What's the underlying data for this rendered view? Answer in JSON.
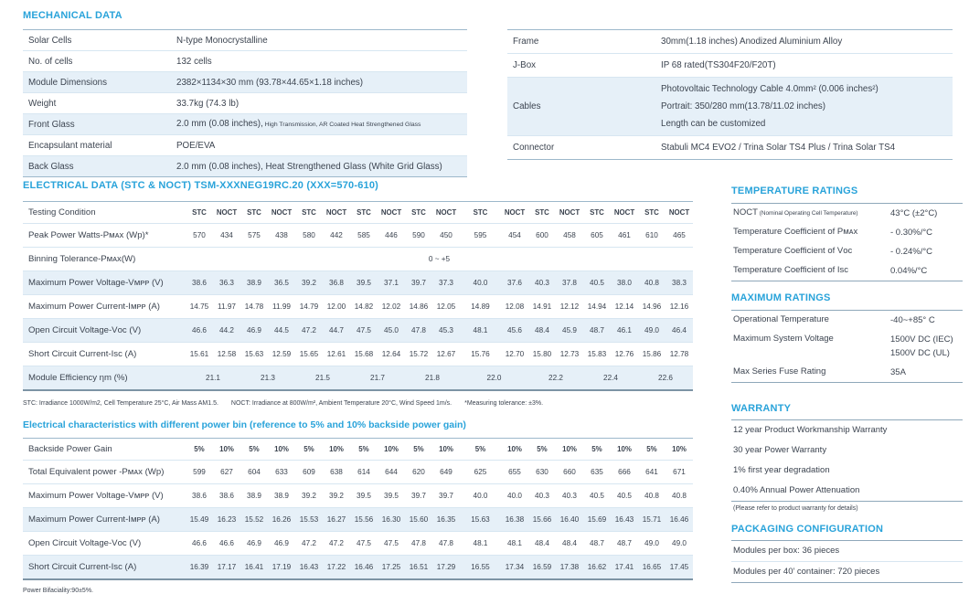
{
  "accent_color": "#29a3da",
  "shaded_row_color": "#e6f0f8",
  "mechanical": {
    "title": "MECHANICAL DATA",
    "left_rows": [
      {
        "label": "Solar Cells",
        "value": "N-type Monocrystalline"
      },
      {
        "label": "No. of cells",
        "value": "132 cells"
      },
      {
        "label": "Module Dimensions",
        "value": "2382×1134×30 mm (93.78×44.65×1.18 inches)",
        "shaded": true
      },
      {
        "label": "Weight",
        "value": "33.7kg (74.3 lb)"
      },
      {
        "label": "Front Glass",
        "value": "2.0 mm (0.08 inches),",
        "note": "High Transmission, AR Coated Heat Strengthened Glass",
        "shaded": true
      },
      {
        "label": "Encapsulant material",
        "value": "POE/EVA"
      },
      {
        "label": "Back Glass",
        "value": "2.0 mm (0.08 inches), Heat Strengthened Glass (White Grid Glass)",
        "shaded": true
      }
    ],
    "right_rows": [
      {
        "label": "Frame",
        "lines": [
          "30mm(1.18 inches)  Anodized  Aluminium Alloy"
        ]
      },
      {
        "label": "J-Box",
        "lines": [
          "IP 68 rated(TS304F20/F20T)"
        ]
      },
      {
        "label": "Cables",
        "lines": [
          "Photovoltaic Technology Cable 4.0mm² (0.006 inches²)",
          "Portrait: 350/280 mm(13.78/11.02 inches)",
          "Length can be customized"
        ],
        "shaded": true
      },
      {
        "label": "Connector",
        "lines": [
          "Stabuli MC4 EVO2 / Trina Solar TS4 Plus / Trina Solar TS4"
        ]
      }
    ]
  },
  "electrical": {
    "title": "ELECTRICAL DATA (STC & NOCT) TSM-XXXNEG19RC.20",
    "title_range": "(XXX=570-610)",
    "header_label": "Testing Condition",
    "col_headers": [
      "STC",
      "NOCT",
      "STC",
      "NOCT",
      "STC",
      "NOCT",
      "STC",
      "NOCT",
      "STC",
      "NOCT",
      "STC",
      "NOCT",
      "STC",
      "NOCT",
      "STC",
      "NOCT",
      "STC",
      "NOCT"
    ],
    "rows": [
      {
        "label": "Peak Power Watts-Pᴍᴀx (Wp)*",
        "values": [
          "570",
          "434",
          "575",
          "438",
          "580",
          "442",
          "585",
          "446",
          "590",
          "450",
          "595",
          "454",
          "600",
          "458",
          "605",
          "461",
          "610",
          "465"
        ]
      },
      {
        "label": "Binning Tolerance-Pᴍᴀx(W)",
        "span": 18,
        "values": [
          "0 ~ +5"
        ]
      },
      {
        "label": "Maximum Power Voltage-Vᴍᴘᴘ (V)",
        "shaded": true,
        "values": [
          "38.6",
          "36.3",
          "38.9",
          "36.5",
          "39.2",
          "36.8",
          "39.5",
          "37.1",
          "39.7",
          "37.3",
          "40.0",
          "37.6",
          "40.3",
          "37.8",
          "40.5",
          "38.0",
          "40.8",
          "38.3"
        ]
      },
      {
        "label": "Maximum Power Current-Iᴍᴘᴘ (A)",
        "values": [
          "14.75",
          "11.97",
          "14.78",
          "11.99",
          "14.79",
          "12.00",
          "14.82",
          "12.02",
          "14.86",
          "12.05",
          "14.89",
          "12.08",
          "14.91",
          "12.12",
          "14.94",
          "12.14",
          "14.96",
          "12.16"
        ]
      },
      {
        "label": "Open Circuit Voltage-Vᴏᴄ (V)",
        "shaded": true,
        "values": [
          "46.6",
          "44.2",
          "46.9",
          "44.5",
          "47.2",
          "44.7",
          "47.5",
          "45.0",
          "47.8",
          "45.3",
          "48.1",
          "45.6",
          "48.4",
          "45.9",
          "48.7",
          "46.1",
          "49.0",
          "46.4"
        ]
      },
      {
        "label": "Short Circuit Current-Isᴄ (A)",
        "values": [
          "15.61",
          "12.58",
          "15.63",
          "12.59",
          "15.65",
          "12.61",
          "15.68",
          "12.64",
          "15.72",
          "12.67",
          "15.76",
          "12.70",
          "15.80",
          "12.73",
          "15.83",
          "12.76",
          "15.86",
          "12.78"
        ]
      },
      {
        "label": "Module Efficiency ηm (%)",
        "span": 2,
        "shaded": true,
        "values": [
          "21.1",
          "21.3",
          "21.5",
          "21.7",
          "21.8",
          "22.0",
          "22.2",
          "22.4",
          "22.6"
        ]
      }
    ],
    "footnotes": [
      "STC: Irradiance 1000W/m2, Cell Temperature 25°C, Air Mass AM1.5.",
      "NOCT: Irradiance at 800W/m², Ambient Temperature 20°C, Wind Speed 1m/s.",
      "*Measuring tolerance: ±3%."
    ]
  },
  "power_bin": {
    "title": "Electrical characteristics with different power bin (reference to 5% and 10% backside power gain)",
    "header_label": "Backside Power Gain",
    "col_headers": [
      "5%",
      "10%",
      "5%",
      "10%",
      "5%",
      "10%",
      "5%",
      "10%",
      "5%",
      "10%",
      "5%",
      "10%",
      "5%",
      "10%",
      "5%",
      "10%",
      "5%",
      "10%"
    ],
    "rows": [
      {
        "label": "Total Equivalent power -Pᴍᴀx (Wp)",
        "values": [
          "599",
          "627",
          "604",
          "633",
          "609",
          "638",
          "614",
          "644",
          "620",
          "649",
          "625",
          "655",
          "630",
          "660",
          "635",
          "666",
          "641",
          "671"
        ]
      },
      {
        "label": "Maximum Power Voltage-Vᴍᴘᴘ (V)",
        "values": [
          "38.6",
          "38.6",
          "38.9",
          "38.9",
          "39.2",
          "39.2",
          "39.5",
          "39.5",
          "39.7",
          "39.7",
          "40.0",
          "40.0",
          "40.3",
          "40.3",
          "40.5",
          "40.5",
          "40.8",
          "40.8"
        ]
      },
      {
        "label": "Maximum Power Current-Iᴍᴘᴘ (A)",
        "shaded": true,
        "values": [
          "15.49",
          "16.23",
          "15.52",
          "16.26",
          "15.53",
          "16.27",
          "15.56",
          "16.30",
          "15.60",
          "16.35",
          "15.63",
          "16.38",
          "15.66",
          "16.40",
          "15.69",
          "16.43",
          "15.71",
          "16.46"
        ]
      },
      {
        "label": "Open Circuit Voltage-Vᴏᴄ (V)",
        "values": [
          "46.6",
          "46.6",
          "46.9",
          "46.9",
          "47.2",
          "47.2",
          "47.5",
          "47.5",
          "47.8",
          "47.8",
          "48.1",
          "48.1",
          "48.4",
          "48.4",
          "48.7",
          "48.7",
          "49.0",
          "49.0"
        ]
      },
      {
        "label": "Short Circuit Current-Isᴄ (A)",
        "shaded": true,
        "values": [
          "16.39",
          "17.17",
          "16.41",
          "17.19",
          "16.43",
          "17.22",
          "16.46",
          "17.25",
          "16.51",
          "17.29",
          "16.55",
          "17.34",
          "16.59",
          "17.38",
          "16.62",
          "17.41",
          "16.65",
          "17.45"
        ]
      }
    ],
    "bifaciality_note": "Power Bifaciality:90±5%."
  },
  "temperature_ratings": {
    "title": "TEMPERATURE RATINGS",
    "rows": [
      {
        "label": "NOCT",
        "label_note": "(Nominal Operating Cell Temperature)",
        "value": "43°C (±2°C)"
      },
      {
        "label": "Temperature Coefficient of Pᴍᴀx",
        "value": "- 0.30%/°C"
      },
      {
        "label": "Temperature Coefficient of Vᴏᴄ",
        "value": "- 0.24%/°C"
      },
      {
        "label": "Temperature Coefficient of Isᴄ",
        "value": "0.04%/°C"
      }
    ]
  },
  "maximum_ratings": {
    "title": "MAXIMUM RATINGS",
    "rows": [
      {
        "label": "Operational Temperature",
        "lines": [
          "-40~+85° C"
        ]
      },
      {
        "label": "Maximum System Voltage",
        "lines": [
          "1500V DC (IEC)",
          "1500V DC (UL)"
        ]
      },
      {
        "label": "Max Series Fuse Rating",
        "lines": [
          "35A"
        ]
      }
    ]
  },
  "warranty": {
    "title": "WARRANTY",
    "items": [
      "12 year Product Workmanship Warranty",
      "30 year Power Warranty",
      "1% first year degradation",
      "0.40% Annual Power Attenuation"
    ],
    "note": "(Please refer to product warranty for details)"
  },
  "packaging": {
    "title": "PACKAGING CONFIGURATION",
    "items": [
      "Modules per box: 36 pieces",
      "Modules per 40’ container: 720 pieces"
    ]
  }
}
